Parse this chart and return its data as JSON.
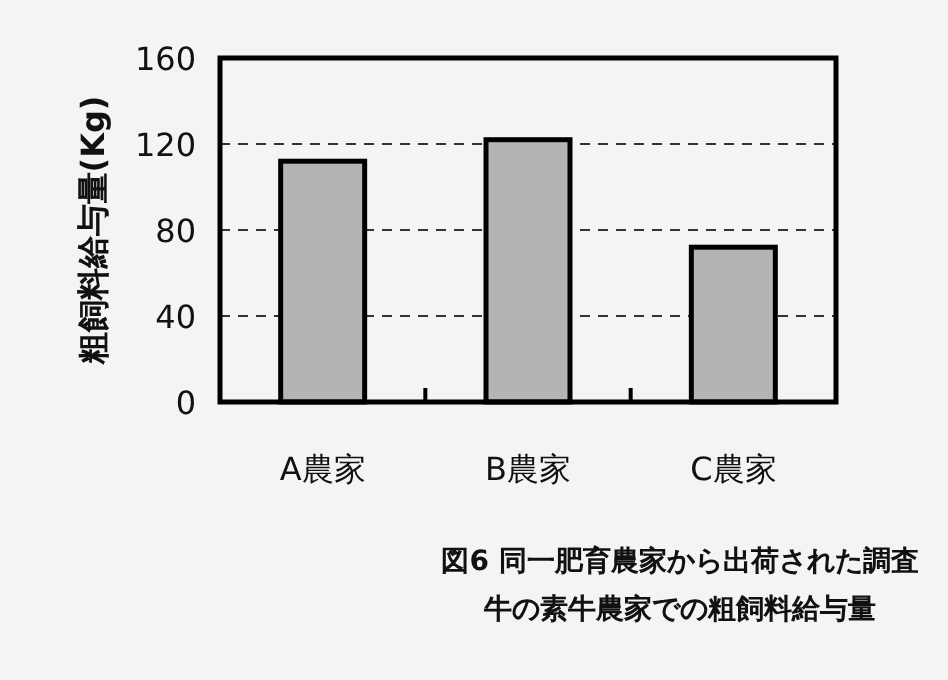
{
  "chart_data": {
    "type": "bar",
    "title": "図6 同一肥育農家から出荷された調査牛の素牛農家での粗飼料給与量",
    "ylabel": "粗飼料給与量(Kg)",
    "categories": [
      "A農家",
      "B農家",
      "C農家"
    ],
    "values": [
      112,
      122,
      72
    ],
    "color": "#b4b4b4",
    "ylim": [
      0,
      160
    ],
    "yticks": [
      0,
      40,
      80,
      120,
      160
    ],
    "grid": "y"
  }
}
